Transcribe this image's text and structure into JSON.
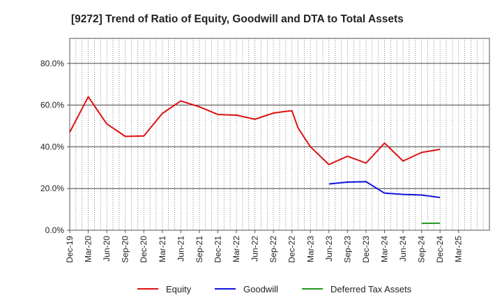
{
  "chart_data": {
    "type": "line",
    "title": "[9272]  Trend of Ratio of Equity, Goodwill and DTA to Total Assets",
    "xlabel": "",
    "ylabel": "",
    "ylim": [
      0,
      92
    ],
    "yticks": [
      0,
      20,
      40,
      60,
      80
    ],
    "ytick_labels": [
      "0.0%",
      "20.0%",
      "40.0%",
      "60.0%",
      "80.0%"
    ],
    "x_months": 68,
    "xtick_labels": [
      "Dec-19",
      "Mar-20",
      "Jun-20",
      "Sep-20",
      "Dec-20",
      "Mar-21",
      "Jun-21",
      "Sep-21",
      "Dec-21",
      "Mar-22",
      "Jun-22",
      "Sep-22",
      "Dec-22",
      "Mar-23",
      "Jun-23",
      "Sep-23",
      "Dec-23",
      "Mar-24",
      "Jun-24",
      "Sep-24",
      "Dec-24",
      "Mar-25"
    ],
    "grid": true,
    "legend_position": "bottom",
    "series": [
      {
        "name": "Equity",
        "color": "#dd1111",
        "points": [
          [
            0,
            47
          ],
          [
            3,
            64
          ],
          [
            6,
            51
          ],
          [
            9,
            45
          ],
          [
            12,
            45.2
          ],
          [
            15,
            56
          ],
          [
            18,
            62
          ],
          [
            21,
            59.2
          ],
          [
            24,
            55.5
          ],
          [
            27,
            55.2
          ],
          [
            30,
            53.2
          ],
          [
            33,
            56.2
          ],
          [
            35,
            57
          ],
          [
            36,
            57.3
          ],
          [
            37,
            49
          ],
          [
            39,
            40
          ],
          [
            42,
            31.5
          ],
          [
            45,
            35.5
          ],
          [
            48,
            32.2
          ],
          [
            51,
            41.8
          ],
          [
            54,
            33.2
          ],
          [
            57,
            37.3
          ],
          [
            60,
            38.8
          ]
        ]
      },
      {
        "name": "Goodwill",
        "color": "#1111dd",
        "points": [
          [
            42,
            22.2
          ],
          [
            45,
            23.1
          ],
          [
            48,
            23.3
          ],
          [
            51,
            17.8
          ],
          [
            54,
            17.2
          ],
          [
            57,
            16.9
          ],
          [
            60,
            15.7
          ]
        ]
      },
      {
        "name": "Deferred Tax Assets",
        "color": "#229922",
        "points": [
          [
            57,
            3.3
          ],
          [
            60,
            3.4
          ]
        ]
      }
    ]
  }
}
